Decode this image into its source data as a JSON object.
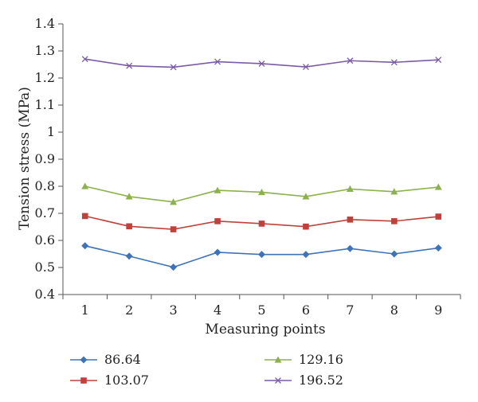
{
  "chart_data": {
    "type": "line",
    "title": "",
    "xlabel": "Measuring points",
    "ylabel": "Tension stress (MPa)",
    "x": [
      1,
      2,
      3,
      4,
      5,
      6,
      7,
      8,
      9
    ],
    "x_tick_labels": [
      "1",
      "2",
      "3",
      "4",
      "5",
      "6",
      "7",
      "8",
      "9"
    ],
    "ylim": [
      0.4,
      1.4
    ],
    "y_ticks": [
      0.4,
      0.5,
      0.6,
      0.7,
      0.8,
      0.9,
      1.0,
      1.1,
      1.2,
      1.3,
      1.4
    ],
    "y_tick_labels": [
      "0.4",
      "0.5",
      "0.6",
      "0.7",
      "0.8",
      "0.9",
      "1",
      "1.1",
      "1.2",
      "1.3",
      "1.4"
    ],
    "grid": false,
    "legend_position": "bottom",
    "series": [
      {
        "name": "86.64",
        "color": "#3f73b8",
        "marker": "diamond",
        "values": [
          0.58,
          0.542,
          0.501,
          0.556,
          0.548,
          0.548,
          0.57,
          0.55,
          0.572
        ]
      },
      {
        "name": "103.07",
        "color": "#c0413c",
        "marker": "square",
        "values": [
          0.69,
          0.652,
          0.641,
          0.671,
          0.662,
          0.651,
          0.677,
          0.671,
          0.688
        ]
      },
      {
        "name": "129.16",
        "color": "#8db24c",
        "marker": "triangle",
        "values": [
          0.8,
          0.762,
          0.742,
          0.785,
          0.778,
          0.762,
          0.79,
          0.78,
          0.797
        ]
      },
      {
        "name": "196.52",
        "color": "#7b5aa6",
        "marker": "x",
        "values": [
          1.27,
          1.245,
          1.24,
          1.26,
          1.253,
          1.241,
          1.264,
          1.258,
          1.267
        ]
      }
    ]
  }
}
